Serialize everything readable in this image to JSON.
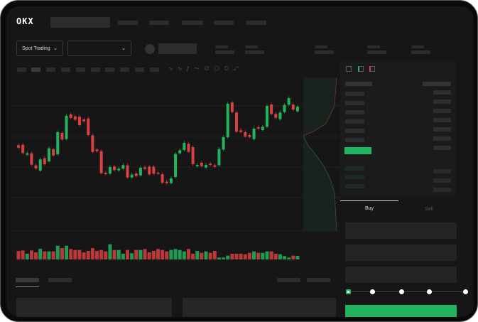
{
  "brand": {
    "logo_text": "OKX"
  },
  "toolbar": {
    "market_select": "Spot Trading"
  },
  "trade": {
    "buy_tab": "Buy",
    "sell_tab": "Sell",
    "active_tab": "Buy",
    "leverage_steps": 5,
    "leverage_selected": 0
  },
  "colors": {
    "up": "#22b35e",
    "down": "#d9403f",
    "background": "#161616"
  },
  "chart_data": {
    "type": "candlestick",
    "candles": [
      [
        170,
        160
      ],
      [
        172,
        137
      ],
      [
        130,
        136
      ],
      [
        136,
        88
      ],
      [
        85,
        72
      ],
      [
        63,
        110
      ],
      [
        115,
        90
      ],
      [
        102,
        157
      ],
      [
        153,
        127
      ],
      [
        132,
        225
      ],
      [
        222,
        194
      ],
      [
        196,
        294
      ],
      [
        300,
        285
      ],
      [
        292,
        278
      ],
      [
        290,
        255
      ],
      [
        279,
        271
      ],
      [
        283,
        213
      ],
      [
        212,
        142
      ],
      [
        152,
        145
      ],
      [
        145,
        52
      ],
      [
        54,
        48
      ],
      [
        50,
        78
      ],
      [
        80,
        65
      ],
      [
        64,
        71
      ],
      [
        71,
        86
      ],
      [
        85,
        34
      ],
      [
        34,
        46
      ],
      [
        51,
        40
      ],
      [
        43,
        75
      ],
      [
        77,
        70
      ],
      [
        80,
        47
      ],
      [
        80,
        50
      ],
      [
        54,
        50
      ],
      [
        48,
        12
      ],
      [
        16,
        10
      ],
      [
        10,
        30
      ],
      [
        36,
        133
      ],
      [
        136,
        149
      ],
      [
        150,
        180
      ],
      [
        176,
        142
      ],
      [
        162,
        90
      ],
      [
        82,
        87
      ],
      [
        96,
        82
      ],
      [
        76,
        87
      ],
      [
        92,
        87
      ],
      [
        85,
        79
      ],
      [
        86,
        154
      ],
      [
        152,
        204
      ],
      [
        204,
        345
      ],
      [
        350,
        310
      ],
      [
        308,
        227
      ],
      [
        233,
        226
      ],
      [
        225,
        207
      ],
      [
        213,
        205
      ],
      [
        196,
        240
      ],
      [
        246,
        240
      ],
      [
        234,
        248
      ],
      [
        248,
        336
      ],
      [
        342,
        302
      ],
      [
        302,
        286
      ],
      [
        280,
        308
      ],
      [
        310,
        340
      ],
      [
        341,
        369
      ],
      [
        342,
        320
      ],
      [
        313,
        333
      ]
    ],
    "volumes": [
      36,
      38,
      24,
      38,
      30,
      45,
      34,
      34,
      34,
      58,
      48,
      58,
      44,
      40,
      40,
      30,
      36,
      48,
      36,
      40,
      34,
      64,
      40,
      40,
      24,
      40,
      26,
      40,
      40,
      44,
      30,
      36,
      44,
      40,
      34,
      40,
      44,
      40,
      34,
      44,
      24,
      36,
      28,
      34,
      28,
      36,
      8,
      8,
      16,
      24,
      24,
      24,
      22,
      28,
      34,
      28,
      28,
      34,
      34,
      24,
      22,
      14,
      8,
      16,
      15
    ],
    "candle_format": "[open, close]"
  }
}
